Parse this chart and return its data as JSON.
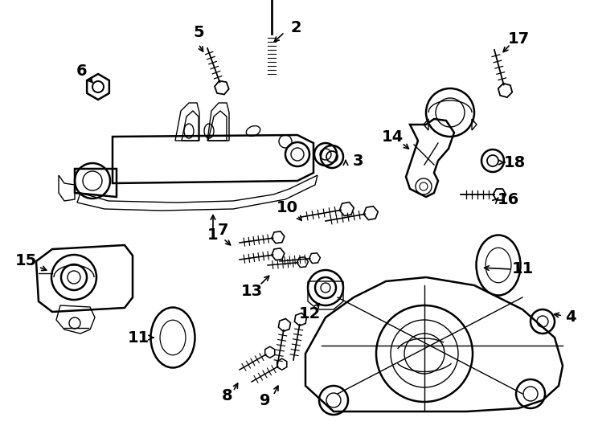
{
  "bg_color": "#ffffff",
  "line_color": "#000000",
  "lw_main": 1.8,
  "lw_thin": 1.0,
  "label_fs": 14,
  "figw": 7.34,
  "figh": 5.4,
  "dpi": 100
}
